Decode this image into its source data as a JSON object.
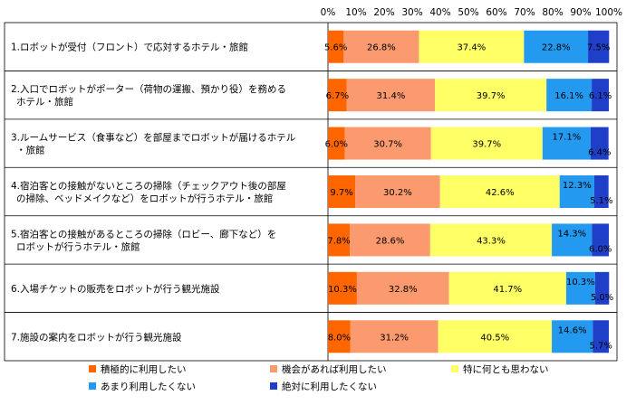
{
  "chart_data": {
    "type": "bar",
    "orientation": "horizontal",
    "stacked": true,
    "xlim": [
      0,
      100
    ],
    "x_ticks": [
      "0%",
      "10%",
      "20%",
      "30%",
      "40%",
      "50%",
      "60%",
      "70%",
      "80%",
      "90%",
      "100%"
    ],
    "grid": false,
    "legend_position": "bottom",
    "categories": [
      [
        "1.ロボットが受付（フロント）で応対するホテル・旅館"
      ],
      [
        "2.入口でロボットがポーター（荷物の運搬、預かり役）を務める",
        "ホテル・旅館"
      ],
      [
        "3.ルームサービス（食事など）を部屋までロボットが届けるホテル",
        "・旅館"
      ],
      [
        "4.宿泊客との接触がないところの掃除（チェックアウト後の部屋",
        "の掃除、ベッドメイクなど）をロボットが行うホテル・旅館"
      ],
      [
        "5.宿泊客との接触があるところの掃除（ロビー、廊下など）を",
        "ロボットが行うホテル・旅館"
      ],
      [
        "6.入場チケットの販売をロボットが行う観光施設"
      ],
      [
        "7.施設の案内をロボットが行う観光施設"
      ]
    ],
    "series": [
      {
        "name": "積極的に利用したい",
        "color": "#FF6600",
        "values": [
          5.6,
          6.7,
          6.0,
          9.7,
          7.8,
          10.3,
          8.0
        ],
        "labels": [
          "5.6%",
          "6.7%",
          "6.0%",
          "9.7%",
          "7.8%",
          "10.3%",
          "8.0%"
        ]
      },
      {
        "name": "機会があれば利用したい",
        "color": "#FA9A6E",
        "values": [
          26.8,
          31.4,
          30.7,
          30.2,
          28.6,
          32.8,
          31.2
        ],
        "labels": [
          "26.8%",
          "31.4%",
          "30.7%",
          "30.2%",
          "28.6%",
          "32.8%",
          "31.2%"
        ]
      },
      {
        "name": "特に何とも思わない",
        "color": "#FFFF66",
        "values": [
          37.4,
          39.7,
          39.7,
          42.6,
          43.3,
          41.7,
          40.5
        ],
        "labels": [
          "37.4%",
          "39.7%",
          "39.7%",
          "42.6%",
          "43.3%",
          "41.7%",
          "40.5%"
        ]
      },
      {
        "name": "あまり利用したくない",
        "color": "#2499F0",
        "values": [
          22.8,
          16.1,
          17.1,
          12.3,
          14.3,
          10.3,
          14.6
        ],
        "labels": [
          "22.8%",
          "16.1%",
          "17.1%",
          "12.3%",
          "14.3%",
          "10.3%",
          "14.6%"
        ]
      },
      {
        "name": "絶対に利用したくない",
        "color": "#1F3FC8",
        "values": [
          7.5,
          6.1,
          6.4,
          5.1,
          6.0,
          5.0,
          5.7
        ],
        "labels": [
          "7.5%",
          "6.1%",
          "6.4%",
          "5.1%",
          "6.0%",
          "5.0%",
          "5.7%"
        ]
      }
    ]
  }
}
